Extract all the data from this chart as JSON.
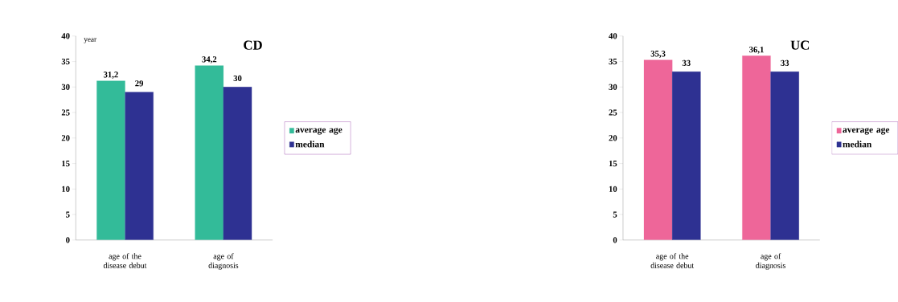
{
  "chart_data": [
    {
      "type": "bar",
      "title": "CD",
      "ylabel": "year",
      "categories": [
        "age of the disease debut",
        "age of diagnosis"
      ],
      "series": [
        {
          "name": "average age",
          "color": "#33bb99",
          "values": [
            31.2,
            34.2
          ],
          "value_labels": [
            "31,2",
            "34,2"
          ]
        },
        {
          "name": "median",
          "color": "#2e3192",
          "values": [
            29,
            30
          ],
          "value_labels": [
            "29",
            "30"
          ]
        }
      ],
      "ylim": [
        0,
        40
      ],
      "yticks": [
        0,
        5,
        10,
        15,
        20,
        25,
        30,
        35,
        40
      ],
      "legend": "right",
      "grid": false
    },
    {
      "type": "bar",
      "title": "UC",
      "categories": [
        "age of the disease debut",
        "age of diagnosis"
      ],
      "series": [
        {
          "name": "average age",
          "color": "#ee6699",
          "values": [
            35.3,
            36.1
          ],
          "value_labels": [
            "35,3",
            "36,1"
          ]
        },
        {
          "name": "median",
          "color": "#2e3192",
          "values": [
            33,
            33
          ],
          "value_labels": [
            "33",
            "33"
          ]
        }
      ],
      "ylim": [
        0,
        40
      ],
      "yticks": [
        0,
        5,
        10,
        15,
        20,
        25,
        30,
        35,
        40
      ],
      "legend": "right",
      "grid": false
    }
  ]
}
